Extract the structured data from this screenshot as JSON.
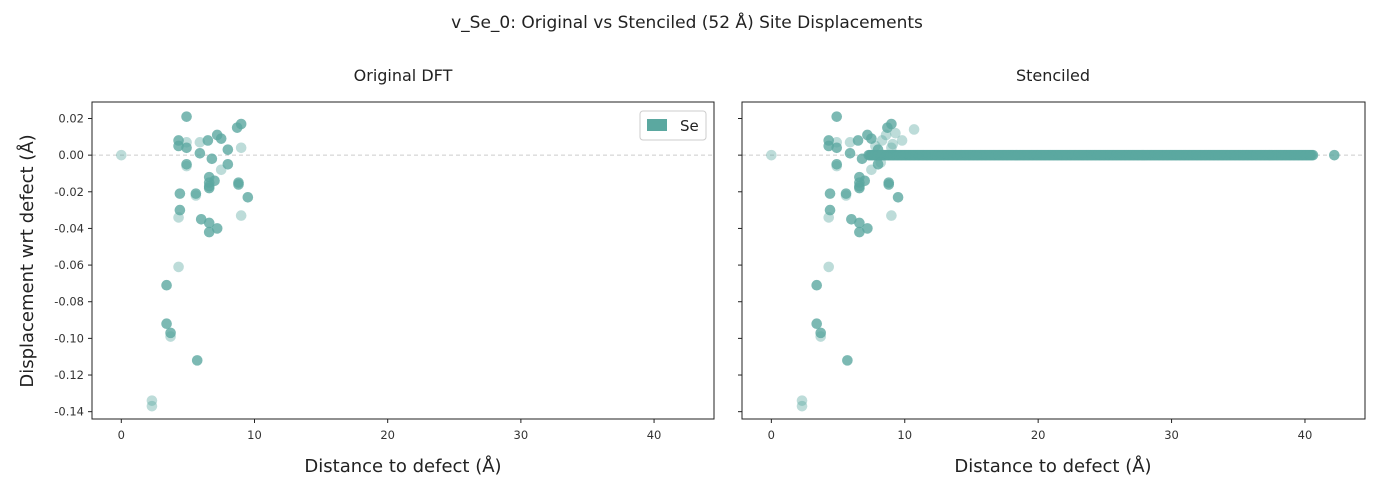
{
  "figure": {
    "title": "v_Se_0: Original vs Stenciled (52 Å) Site Displacements",
    "ylabel": "Displacement wrt defect (Å)",
    "legend": {
      "label": "Se",
      "color": "#5BA8A0",
      "placement": "top-right"
    }
  },
  "chart_data": [
    {
      "type": "scatter",
      "title": "Original DFT",
      "xlabel": "Distance to defect (Å)",
      "ylabel": "Displacement wrt defect (Å)",
      "xlim": [
        -2.2,
        44.5
      ],
      "ylim": [
        -0.144,
        0.029
      ],
      "xticks": [
        0,
        10,
        20,
        30,
        40
      ],
      "yticks": [
        0.02,
        0.0,
        -0.02,
        -0.04,
        -0.06,
        -0.08,
        -0.1,
        -0.12,
        -0.14
      ],
      "reference_line": 0,
      "grid": false,
      "legend": "top-right",
      "color": "#5BA8A0",
      "series": [
        {
          "name": "Se",
          "points": [
            [
              0.0,
              0.0,
              0.4
            ],
            [
              2.3,
              -0.134,
              0.4
            ],
            [
              2.3,
              -0.137,
              0.4
            ],
            [
              3.4,
              -0.071,
              0.8
            ],
            [
              3.4,
              -0.092,
              0.8
            ],
            [
              3.7,
              -0.097,
              0.8
            ],
            [
              3.7,
              -0.099,
              0.4
            ],
            [
              4.3,
              0.008,
              0.8
            ],
            [
              4.3,
              0.005,
              0.8
            ],
            [
              4.4,
              -0.021,
              0.8
            ],
            [
              4.4,
              -0.03,
              0.8
            ],
            [
              4.3,
              -0.034,
              0.4
            ],
            [
              4.3,
              -0.061,
              0.4
            ],
            [
              4.9,
              0.021,
              0.8
            ],
            [
              4.9,
              0.007,
              0.4
            ],
            [
              4.9,
              0.004,
              0.8
            ],
            [
              4.9,
              -0.005,
              0.8
            ],
            [
              4.9,
              -0.006,
              0.4
            ],
            [
              5.6,
              -0.021,
              0.8
            ],
            [
              5.6,
              -0.022,
              0.4
            ],
            [
              5.7,
              -0.112,
              0.8
            ],
            [
              5.9,
              0.007,
              0.4
            ],
            [
              5.9,
              0.001,
              0.8
            ],
            [
              6.0,
              -0.035,
              0.8
            ],
            [
              6.5,
              0.008,
              0.8
            ],
            [
              6.6,
              -0.012,
              0.8
            ],
            [
              6.6,
              -0.015,
              0.8
            ],
            [
              6.6,
              -0.017,
              0.8
            ],
            [
              6.6,
              -0.018,
              0.8
            ],
            [
              6.6,
              -0.037,
              0.8
            ],
            [
              6.6,
              -0.042,
              0.8
            ],
            [
              6.8,
              -0.002,
              0.8
            ],
            [
              7.0,
              -0.014,
              0.8
            ],
            [
              7.2,
              0.011,
              0.8
            ],
            [
              7.2,
              -0.04,
              0.8
            ],
            [
              7.5,
              0.009,
              0.8
            ],
            [
              7.5,
              -0.008,
              0.4
            ],
            [
              8.0,
              -0.005,
              0.8
            ],
            [
              8.0,
              0.003,
              0.8
            ],
            [
              8.7,
              0.015,
              0.8
            ],
            [
              8.8,
              -0.015,
              0.8
            ],
            [
              8.8,
              -0.016,
              0.8
            ],
            [
              9.0,
              0.017,
              0.8
            ],
            [
              9.0,
              0.004,
              0.4
            ],
            [
              9.0,
              -0.033,
              0.4
            ],
            [
              9.5,
              -0.023,
              0.8
            ]
          ]
        }
      ]
    },
    {
      "type": "scatter",
      "title": "Stenciled",
      "xlabel": "Distance to defect (Å)",
      "xlim": [
        -2.2,
        44.5
      ],
      "ylim": [
        -0.144,
        0.029
      ],
      "xticks": [
        0,
        10,
        20,
        30,
        40
      ],
      "reference_line": 0,
      "grid": false,
      "color": "#5BA8A0",
      "series": [
        {
          "name": "Se",
          "points": [
            [
              0.0,
              0.0,
              0.4
            ],
            [
              2.3,
              -0.134,
              0.4
            ],
            [
              2.3,
              -0.137,
              0.4
            ],
            [
              3.4,
              -0.071,
              0.8
            ],
            [
              3.4,
              -0.092,
              0.8
            ],
            [
              3.7,
              -0.097,
              0.8
            ],
            [
              3.7,
              -0.099,
              0.4
            ],
            [
              4.3,
              0.008,
              0.8
            ],
            [
              4.3,
              0.005,
              0.8
            ],
            [
              4.4,
              -0.021,
              0.8
            ],
            [
              4.4,
              -0.03,
              0.8
            ],
            [
              4.3,
              -0.034,
              0.4
            ],
            [
              4.3,
              -0.061,
              0.4
            ],
            [
              4.9,
              0.021,
              0.8
            ],
            [
              4.9,
              0.007,
              0.4
            ],
            [
              4.9,
              0.004,
              0.8
            ],
            [
              4.9,
              -0.005,
              0.8
            ],
            [
              4.9,
              -0.006,
              0.4
            ],
            [
              5.6,
              -0.021,
              0.8
            ],
            [
              5.6,
              -0.022,
              0.4
            ],
            [
              5.7,
              -0.112,
              0.8
            ],
            [
              5.9,
              0.007,
              0.4
            ],
            [
              5.9,
              0.001,
              0.8
            ],
            [
              6.0,
              -0.035,
              0.8
            ],
            [
              6.5,
              0.008,
              0.8
            ],
            [
              6.6,
              -0.012,
              0.8
            ],
            [
              6.6,
              -0.015,
              0.8
            ],
            [
              6.6,
              -0.017,
              0.8
            ],
            [
              6.6,
              -0.018,
              0.8
            ],
            [
              6.6,
              -0.037,
              0.8
            ],
            [
              6.6,
              -0.042,
              0.8
            ],
            [
              6.8,
              -0.002,
              0.8
            ],
            [
              7.0,
              -0.014,
              0.8
            ],
            [
              7.2,
              0.011,
              0.8
            ],
            [
              7.2,
              -0.04,
              0.8
            ],
            [
              7.5,
              0.009,
              0.8
            ],
            [
              7.5,
              -0.008,
              0.4
            ],
            [
              8.0,
              -0.005,
              0.8
            ],
            [
              8.0,
              0.003,
              0.8
            ],
            [
              8.7,
              0.015,
              0.8
            ],
            [
              8.8,
              -0.015,
              0.8
            ],
            [
              8.8,
              -0.016,
              0.8
            ],
            [
              9.0,
              0.017,
              0.8
            ],
            [
              9.0,
              0.004,
              0.4
            ],
            [
              9.0,
              -0.033,
              0.4
            ],
            [
              9.5,
              -0.023,
              0.8
            ],
            [
              8.3,
              0.008,
              0.4
            ],
            [
              8.6,
              0.011,
              0.4
            ],
            [
              9.3,
              0.012,
              0.4
            ],
            [
              9.8,
              0.008,
              0.4
            ],
            [
              10.7,
              0.014,
              0.4
            ],
            [
              8.2,
              -0.004,
              0.4
            ],
            [
              9.1,
              0.006,
              0.4
            ],
            [
              7.8,
              0.005,
              0.4
            ],
            [
              42.2,
              0.0,
              0.8
            ]
          ],
          "band": {
            "x_start": 7.3,
            "x_end": 40.6,
            "y": 0.0,
            "count": 340
          }
        }
      ]
    }
  ]
}
